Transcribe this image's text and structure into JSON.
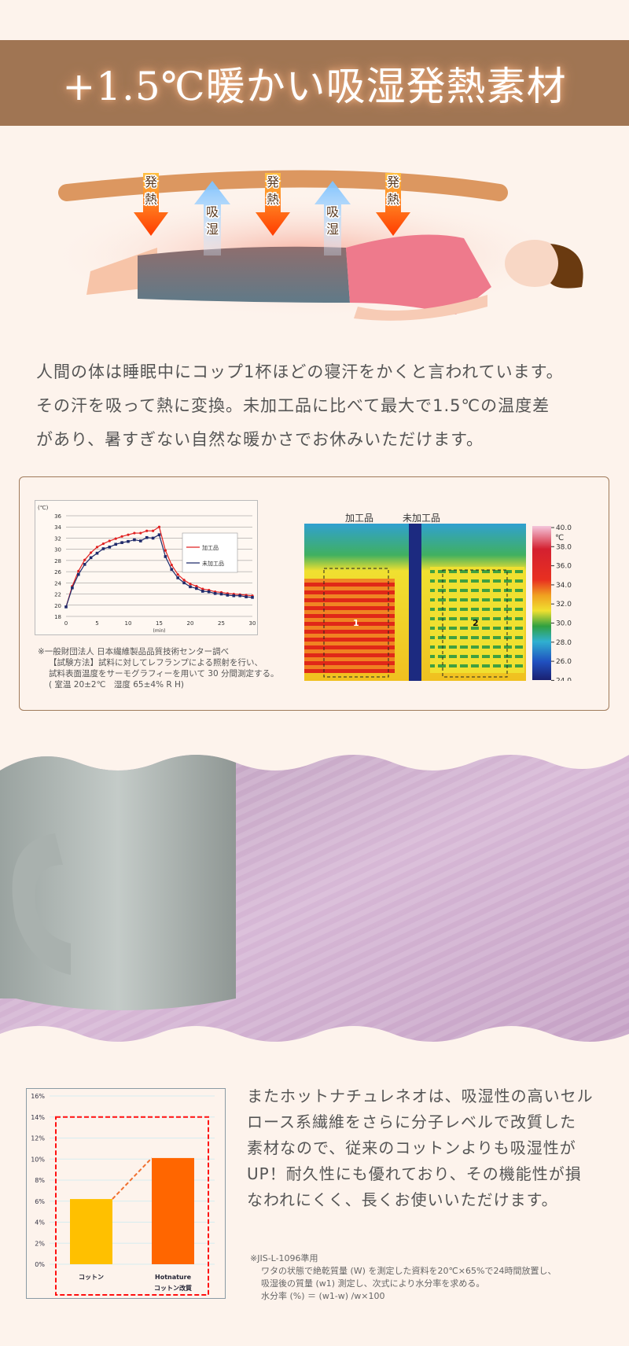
{
  "header": {
    "title": "+1.5℃暖かい吸湿発熱素材"
  },
  "illustration": {
    "arrows": [
      {
        "label": "発熱",
        "type": "heat"
      },
      {
        "label": "吸湿",
        "type": "moisture"
      },
      {
        "label": "発熱",
        "type": "heat"
      },
      {
        "label": "吸湿",
        "type": "moisture"
      },
      {
        "label": "発熱",
        "type": "heat"
      }
    ]
  },
  "intro": {
    "lines": [
      "人間の体は睡眠中にコップ1杯ほどの寝汗をかくと言われています。",
      "その汗を吸って熱に変換。未加工品に比べて最大で1.5℃の温度差",
      "があり、暑すぎない自然な暖かさでお休みいただけます。"
    ]
  },
  "chart_data": [
    {
      "type": "line",
      "ylabel": "(℃)",
      "xlabel": "(min)",
      "xlim": [
        0,
        30
      ],
      "ylim": [
        18,
        36
      ],
      "xticks": [
        "0",
        "5",
        "10",
        "15",
        "20",
        "25",
        "30"
      ],
      "yticks": [
        "18",
        "20",
        "22",
        "24",
        "26",
        "28",
        "30",
        "32",
        "34",
        "36"
      ],
      "grid": true,
      "legend": "right",
      "x": [
        0,
        1,
        2,
        3,
        4,
        5,
        6,
        7,
        8,
        9,
        10,
        11,
        12,
        13,
        14,
        15,
        16,
        17,
        18,
        19,
        20,
        21,
        22,
        23,
        24,
        25,
        26,
        27,
        28,
        29,
        30
      ],
      "series": [
        {
          "name": "加工品",
          "color": "#e02020",
          "values": [
            19.7,
            23.4,
            26.1,
            28.1,
            29.4,
            30.4,
            31.0,
            31.5,
            31.9,
            32.3,
            32.6,
            32.9,
            32.9,
            33.3,
            33.3,
            34.0,
            29.8,
            27.2,
            25.5,
            24.5,
            23.8,
            23.4,
            22.9,
            22.7,
            22.4,
            22.3,
            22.1,
            22.0,
            21.9,
            21.8,
            21.7
          ]
        },
        {
          "name": "未加工品",
          "color": "#1f2a6a",
          "values": [
            19.7,
            23.1,
            25.5,
            27.3,
            28.5,
            29.3,
            30.1,
            30.4,
            30.9,
            31.2,
            31.4,
            31.7,
            31.5,
            32.1,
            32.0,
            32.6,
            28.7,
            26.4,
            24.9,
            24.0,
            23.3,
            23.0,
            22.5,
            22.4,
            22.1,
            22.0,
            21.8,
            21.7,
            21.7,
            21.5,
            21.4
          ]
        }
      ]
    },
    {
      "type": "bar",
      "ylim": [
        0,
        16
      ],
      "yticks": [
        "0%",
        "2%",
        "4%",
        "6%",
        "8%",
        "10%",
        "12%",
        "14%",
        "16%"
      ],
      "grid": true,
      "categories": [
        [
          "コットン"
        ],
        [
          "Hotnature",
          "コットン改質"
        ]
      ],
      "values": [
        6.2,
        10.1
      ],
      "colors": [
        "#ffc000",
        "#ff6600"
      ]
    }
  ],
  "chart_notes": [
    "※一般財団法人 日本繊維製品品質技術センター調べ",
    "【試験方法】試料に対してレフランプによる照射を行い、",
    "試料表面温度をサーモグラフィーを用いて 30 分間測定する。",
    "( 室温 20±2℃　湿度 65±4% R H)"
  ],
  "thermal": {
    "label_left": "加工品",
    "label_right": "未加工品",
    "region1": "1",
    "region2": "2",
    "unit": "℃",
    "scale": [
      "40.0",
      "38.0",
      "36.0",
      "34.0",
      "32.0",
      "30.0",
      "28.0",
      "26.0",
      "24.0"
    ]
  },
  "body2": {
    "lines": [
      "またホットナチュレネオは、吸湿性の高いセル",
      "ロース系繊維をさらに分子レベルで改質した",
      "素材なので、従来のコットンよりも吸湿性が",
      "UP！耐久性にも優れており、その機能性が損",
      "なわれにくく、長くお使いいただけます。"
    ]
  },
  "notes2": [
    "※JIS-L-1096準用",
    "ワタの状態で絶乾質量 (W) を測定した資料を20℃×65%で24時間放置し、",
    "吸湿後の質量 (w1) 測定し、次式により水分率を求める。",
    "水分率 (%) ＝ (w1-w) /w×100"
  ]
}
